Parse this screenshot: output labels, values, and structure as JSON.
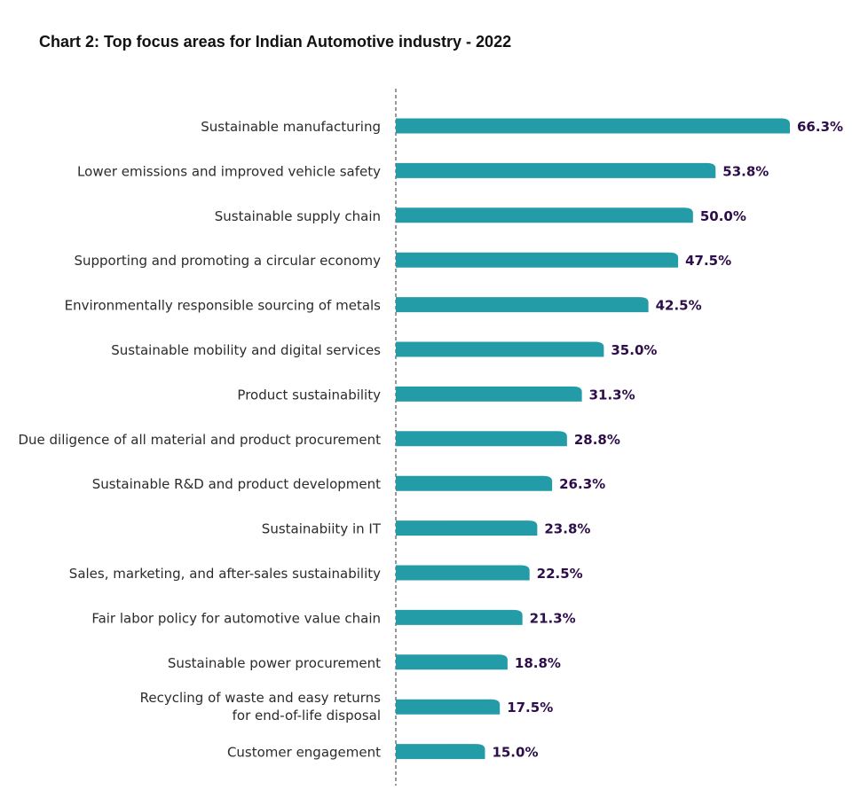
{
  "chart_data": {
    "type": "bar",
    "orientation": "horizontal",
    "title": "Chart 2: Top focus areas for Indian Automotive industry - 2022",
    "categories": [
      "Sustainable manufacturing",
      "Lower emissions and improved vehicle safety",
      "Sustainable supply chain",
      "Supporting and promoting a circular economy",
      "Environmentally responsible sourcing of metals",
      "Sustainable mobility and digital services",
      "Product sustainability",
      "Due diligence of all material and product procurement",
      "Sustainable R&D and product development",
      "Sustainabiity in IT",
      "Sales, marketing, and after-sales sustainability",
      "Fair labor policy for automotive value chain",
      "Sustainable power procurement",
      "Recycling of waste and easy returns\nfor end-of-life disposal",
      "Customer engagement"
    ],
    "values": [
      66.3,
      53.8,
      50.0,
      47.5,
      42.5,
      35.0,
      31.3,
      28.8,
      26.3,
      23.8,
      22.5,
      21.3,
      18.8,
      17.5,
      15.0
    ],
    "value_labels": [
      "66.3%",
      "53.8%",
      "50.0%",
      "47.5%",
      "42.5%",
      "35.0%",
      "31.3%",
      "28.8%",
      "26.3%",
      "23.8%",
      "22.5%",
      "21.3%",
      "18.8%",
      "17.5%",
      "15.0%"
    ],
    "xlim": [
      0,
      66.3
    ],
    "grid": false,
    "legend": "none",
    "bar_color": "#239ca8",
    "value_label_color": "#2d0e4a",
    "axis_line_color": "#555555"
  }
}
